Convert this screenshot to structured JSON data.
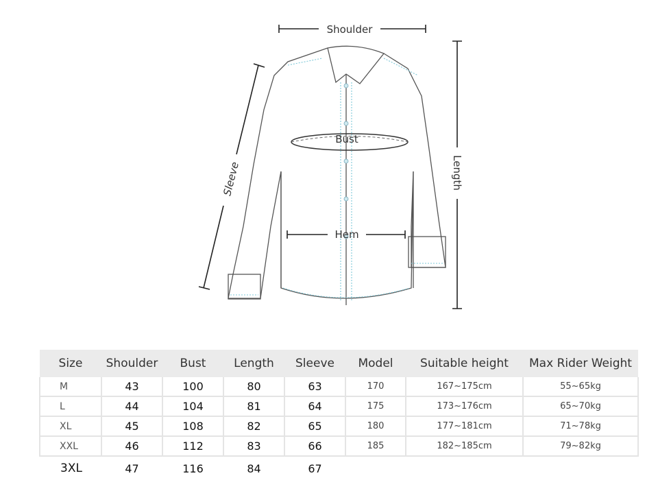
{
  "diagram": {
    "labels": {
      "shoulder": "Shoulder",
      "bust": "Bust",
      "hem": "Hem",
      "sleeve": "Sleeve",
      "length": "Length"
    },
    "colors": {
      "outline": "#555555",
      "seam": "#7ec8d8",
      "arrow": "#222222"
    }
  },
  "table": {
    "headers": [
      "Size",
      "Shoulder",
      "Bust",
      "Length",
      "Sleeve",
      "Model",
      "Suitable height",
      "Max Rider Weight"
    ],
    "rows": [
      {
        "size": "M",
        "shoulder": "43",
        "bust": "100",
        "length": "80",
        "sleeve": "63",
        "model": "170",
        "height": "167~175cm",
        "weight": "55~65kg"
      },
      {
        "size": "L",
        "shoulder": "44",
        "bust": "104",
        "length": "81",
        "sleeve": "64",
        "model": "175",
        "height": "173~176cm",
        "weight": "65~70kg"
      },
      {
        "size": "XL",
        "shoulder": "45",
        "bust": "108",
        "length": "82",
        "sleeve": "65",
        "model": "180",
        "height": "177~181cm",
        "weight": "71~78kg"
      },
      {
        "size": "XXL",
        "shoulder": "46",
        "bust": "112",
        "length": "83",
        "sleeve": "66",
        "model": "185",
        "height": "182~185cm",
        "weight": "79~82kg"
      },
      {
        "size": "3XL",
        "shoulder": "47",
        "bust": "116",
        "length": "84",
        "sleeve": "67"
      }
    ]
  }
}
